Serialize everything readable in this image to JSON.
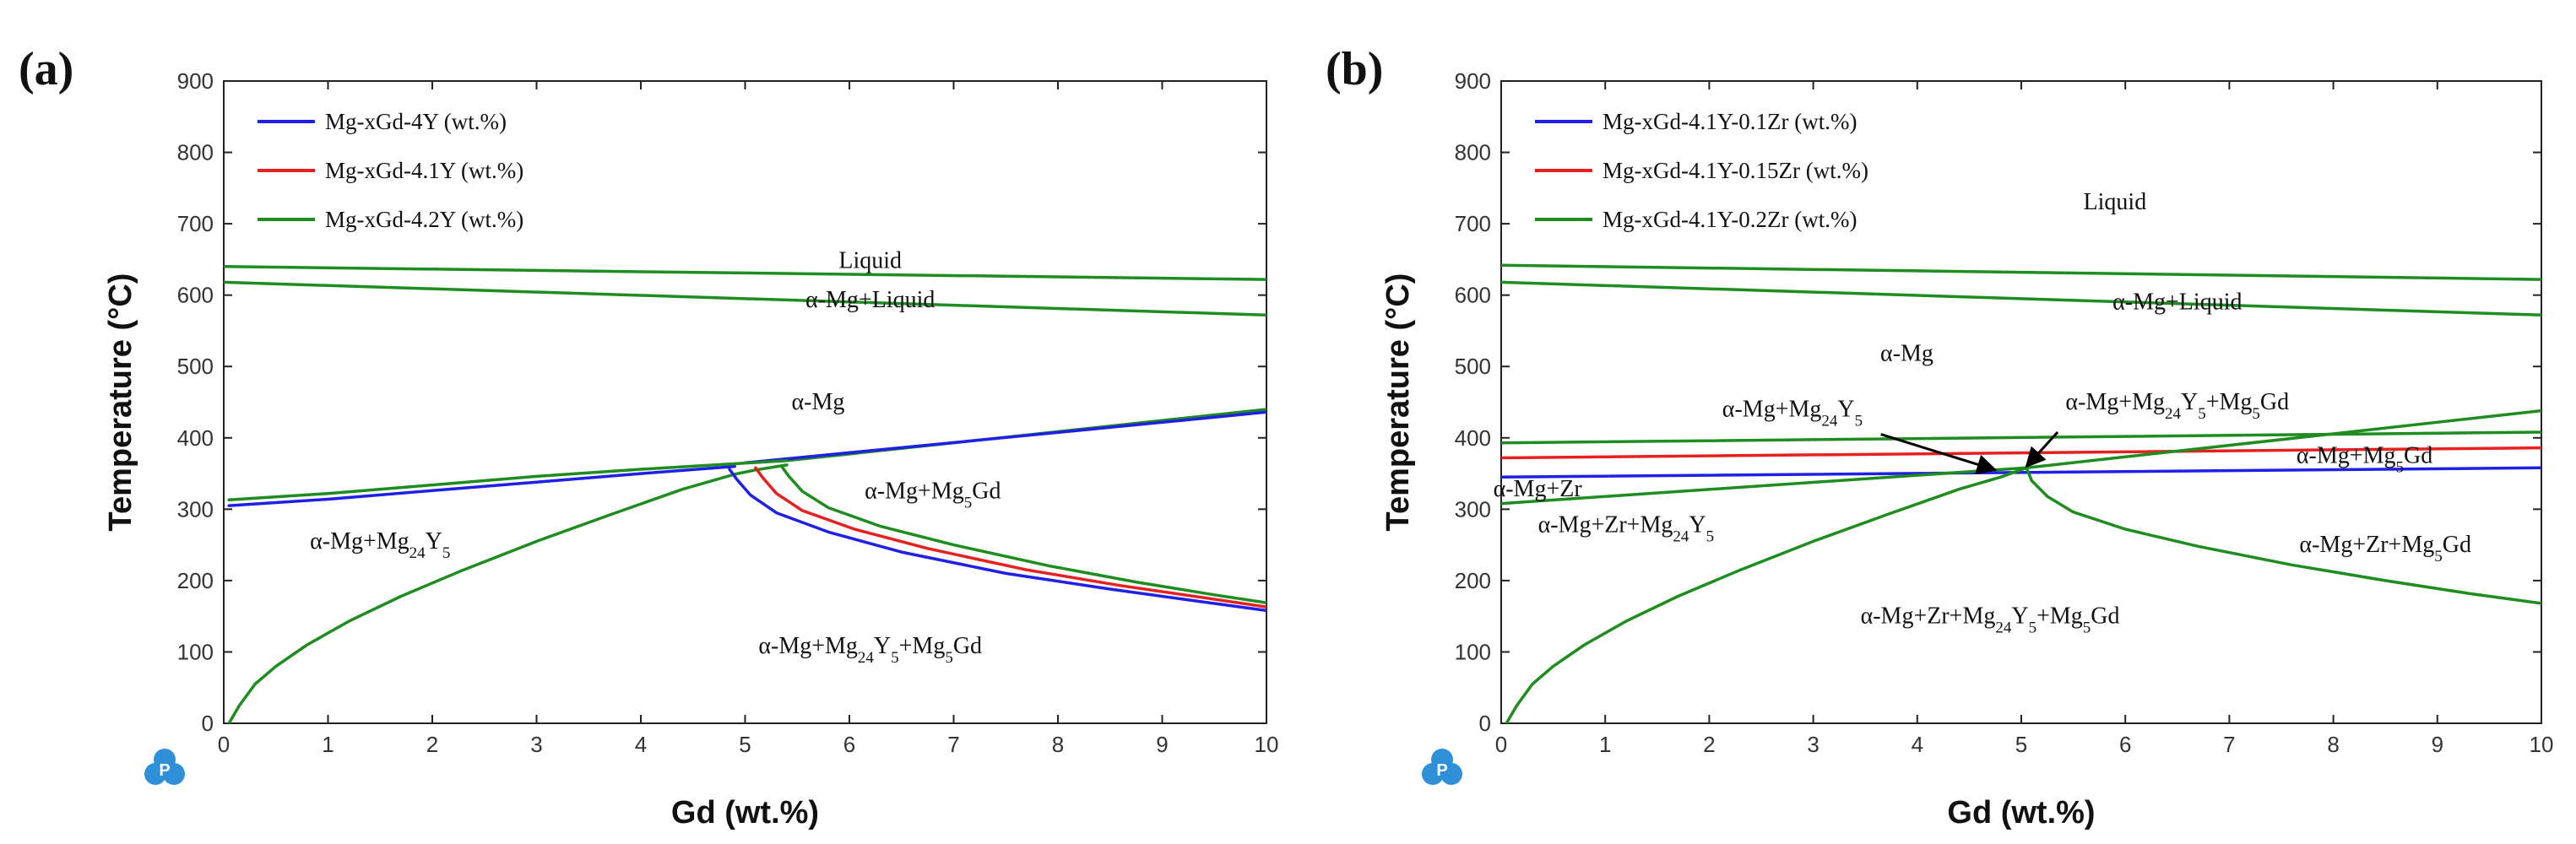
{
  "figure": {
    "logo_glyph": "P",
    "colors": {
      "blue": "#1f1fe6",
      "red": "#e61f1f",
      "green": "#1e8c1e",
      "axis": "#222222"
    }
  },
  "chart_data": [
    {
      "panel": "(a)",
      "type": "line",
      "xlabel": "Gd (wt.%)",
      "ylabel": "Temperature (°C)",
      "xlim": [
        0,
        10
      ],
      "ylim": [
        0,
        900
      ],
      "xticks": [
        "0",
        "1",
        "2",
        "3",
        "4",
        "5",
        "6",
        "7",
        "8",
        "9",
        "10"
      ],
      "yticks": [
        "0",
        "100",
        "200",
        "300",
        "400",
        "500",
        "600",
        "700",
        "800",
        "900"
      ],
      "legend": [
        {
          "label": "Mg-xGd-4Y (wt.%)",
          "color": "#1f1fe6"
        },
        {
          "label": "Mg-xGd-4.1Y (wt.%)",
          "color": "#e61f1f"
        },
        {
          "label": "Mg-xGd-4.2Y (wt.%)",
          "color": "#1e8c1e"
        }
      ],
      "annotations": [
        {
          "main": "Liquid",
          "x": 6.2,
          "y": 638
        },
        {
          "main": "α-Mg+Liquid",
          "x": 6.2,
          "y": 583
        },
        {
          "main": "α-Mg",
          "x": 5.7,
          "y": 440
        },
        {
          "main": "α-Mg+Mg",
          "sub": "5",
          "tail": "Gd",
          "x": 6.8,
          "y": 315
        },
        {
          "main": "α-Mg+Mg",
          "sub": "24",
          "tail": "Y",
          "sub2": "5",
          "x": 1.5,
          "y": 245
        },
        {
          "main": "α-Mg+Mg",
          "sub": "24",
          "tail": "Y",
          "sub2": "5",
          "tail2": "+Mg",
          "sub3": "5",
          "tail3": "Gd",
          "x": 6.2,
          "y": 98
        }
      ],
      "series": [
        {
          "name": "liquidus",
          "color": "#1e8c1e",
          "x": [
            0,
            10
          ],
          "y": [
            640,
            622
          ]
        },
        {
          "name": "solidus",
          "color": "#1e8c1e",
          "x": [
            0,
            10
          ],
          "y": [
            618,
            572
          ]
        },
        {
          "name": "Mg5Gd solvus",
          "color": "#1e8c1e",
          "x": [
            5.4,
            10
          ],
          "y": [
            368,
            440
          ]
        },
        {
          "name": "Mg5Gd solvus",
          "color": "#1f1fe6",
          "x": [
            5.0,
            10
          ],
          "y": [
            365,
            436
          ]
        },
        {
          "name": "Mg24Y5 solvus 4Y",
          "color": "#1f1fe6",
          "x": [
            0.05,
            1,
            2,
            3,
            4,
            4.9
          ],
          "y": [
            305,
            314,
            326,
            338,
            350,
            360
          ]
        },
        {
          "name": "Mg24Y5 solvus 4.2Y",
          "color": "#1e8c1e",
          "x": [
            0.05,
            1,
            2,
            3,
            4,
            5.4
          ],
          "y": [
            313,
            322,
            334,
            346,
            356,
            368
          ]
        },
        {
          "name": "Mg24Y5 boundary",
          "color": "#1e8c1e",
          "x": [
            0.05,
            0.15,
            0.3,
            0.5,
            0.8,
            1.2,
            1.7,
            2.3,
            3.0,
            3.7,
            4.4,
            4.9,
            5.1,
            5.4
          ],
          "y": [
            0,
            25,
            55,
            80,
            110,
            143,
            178,
            215,
            255,
            292,
            328,
            349,
            355,
            362
          ]
        },
        {
          "name": "Mg5Gd boundary 4Y",
          "color": "#1f1fe6",
          "x": [
            4.85,
            4.92,
            5.05,
            5.3,
            5.8,
            6.5,
            7.5,
            8.5,
            9.3,
            10
          ],
          "y": [
            356,
            342,
            320,
            295,
            268,
            240,
            210,
            188,
            172,
            158
          ]
        },
        {
          "name": "Mg5Gd boundary 4.1Y",
          "color": "#e61f1f",
          "x": [
            5.1,
            5.17,
            5.3,
            5.55,
            6.05,
            6.75,
            7.7,
            8.6,
            9.4,
            10
          ],
          "y": [
            358,
            344,
            322,
            298,
            272,
            245,
            215,
            193,
            176,
            163
          ]
        },
        {
          "name": "Mg5Gd boundary 4.2Y",
          "color": "#1e8c1e",
          "x": [
            5.35,
            5.42,
            5.55,
            5.8,
            6.3,
            7.0,
            7.9,
            8.75,
            9.5,
            10
          ],
          "y": [
            360,
            346,
            325,
            302,
            276,
            250,
            221,
            198,
            180,
            169
          ]
        }
      ]
    },
    {
      "panel": "(b)",
      "type": "line",
      "xlabel": "Gd (wt.%)",
      "ylabel": "Temperature (°C)",
      "xlim": [
        0,
        10
      ],
      "ylim": [
        0,
        900
      ],
      "xticks": [
        "0",
        "1",
        "2",
        "3",
        "4",
        "5",
        "6",
        "7",
        "8",
        "9",
        "10"
      ],
      "yticks": [
        "0",
        "100",
        "200",
        "300",
        "400",
        "500",
        "600",
        "700",
        "800",
        "900"
      ],
      "legend": [
        {
          "label": "Mg-xGd-4.1Y-0.1Zr (wt.%)",
          "color": "#1f1fe6"
        },
        {
          "label": "Mg-xGd-4.1Y-0.15Zr (wt.%)",
          "color": "#e61f1f"
        },
        {
          "label": "Mg-xGd-4.1Y-0.2Zr (wt.%)",
          "color": "#1e8c1e"
        }
      ],
      "annotations": [
        {
          "main": "Liquid",
          "x": 5.9,
          "y": 720
        },
        {
          "main": "α-Mg+Liquid",
          "x": 6.5,
          "y": 580
        },
        {
          "main": "α-Mg",
          "x": 3.9,
          "y": 508
        },
        {
          "main": "α-Mg+Mg",
          "sub": "24",
          "tail": "Y",
          "sub2": "5",
          "x": 2.8,
          "y": 430
        },
        {
          "main": "α-Mg+Mg",
          "sub": "24",
          "tail": "Y",
          "sub2": "5",
          "tail2": "+Mg",
          "sub3": "5",
          "tail3": "Gd",
          "x": 6.5,
          "y": 440
        },
        {
          "main": "α-Mg+Mg",
          "sub": "5",
          "tail": "Gd",
          "x": 8.3,
          "y": 365
        },
        {
          "main": "α-Mg+Zr",
          "x": 0.35,
          "y": 318
        },
        {
          "main": "α-Mg+Zr+Mg",
          "sub": "24",
          "tail": "Y",
          "sub2": "5",
          "x": 1.2,
          "y": 268
        },
        {
          "main": "α-Mg+Zr+Mg",
          "sub": "5",
          "tail": "Gd",
          "x": 8.5,
          "y": 240
        },
        {
          "main": "α-Mg+Zr+Mg",
          "sub": "24",
          "tail": "Y",
          "sub2": "5",
          "tail2": "+Mg",
          "sub3": "5",
          "tail3": "Gd",
          "x": 4.7,
          "y": 140
        }
      ],
      "series": [
        {
          "name": "liquidus",
          "color": "#1e8c1e",
          "x": [
            0,
            10
          ],
          "y": [
            642,
            622
          ]
        },
        {
          "name": "solidus",
          "color": "#1e8c1e",
          "x": [
            0,
            10
          ],
          "y": [
            618,
            572
          ]
        },
        {
          "name": "Zr solvus 0.1Zr",
          "color": "#1f1fe6",
          "x": [
            0,
            10
          ],
          "y": [
            345,
            358
          ]
        },
        {
          "name": "Zr solvus 0.15Zr",
          "color": "#e61f1f",
          "x": [
            0,
            10
          ],
          "y": [
            372,
            386
          ]
        },
        {
          "name": "Zr solvus 0.2Zr",
          "color": "#1e8c1e",
          "x": [
            0,
            10
          ],
          "y": [
            393,
            408
          ]
        },
        {
          "name": "Mg24Y5 solvus",
          "color": "#1e8c1e",
          "x": [
            0,
            5.05
          ],
          "y": [
            308,
            358
          ]
        },
        {
          "name": "Mg5Gd solvus",
          "color": "#1e8c1e",
          "x": [
            5.05,
            10
          ],
          "y": [
            358,
            438
          ]
        },
        {
          "name": "Mg24Y5 boundary",
          "color": "#1e8c1e",
          "x": [
            0.05,
            0.15,
            0.3,
            0.5,
            0.8,
            1.2,
            1.7,
            2.3,
            3.0,
            3.7,
            4.4,
            4.8,
            5.05
          ],
          "y": [
            0,
            25,
            55,
            80,
            110,
            143,
            178,
            215,
            255,
            292,
            328,
            345,
            358
          ]
        },
        {
          "name": "Mg5Gd boundary",
          "color": "#1e8c1e",
          "x": [
            5.05,
            5.1,
            5.25,
            5.5,
            6.0,
            6.7,
            7.6,
            8.5,
            9.3,
            10
          ],
          "y": [
            358,
            340,
            318,
            296,
            272,
            248,
            222,
            200,
            182,
            168
          ]
        }
      ],
      "arrows": [
        {
          "from": [
            3.65,
            405
          ],
          "to": [
            4.75,
            355
          ]
        },
        {
          "from": [
            5.35,
            408
          ],
          "to": [
            5.05,
            360
          ]
        }
      ]
    }
  ]
}
